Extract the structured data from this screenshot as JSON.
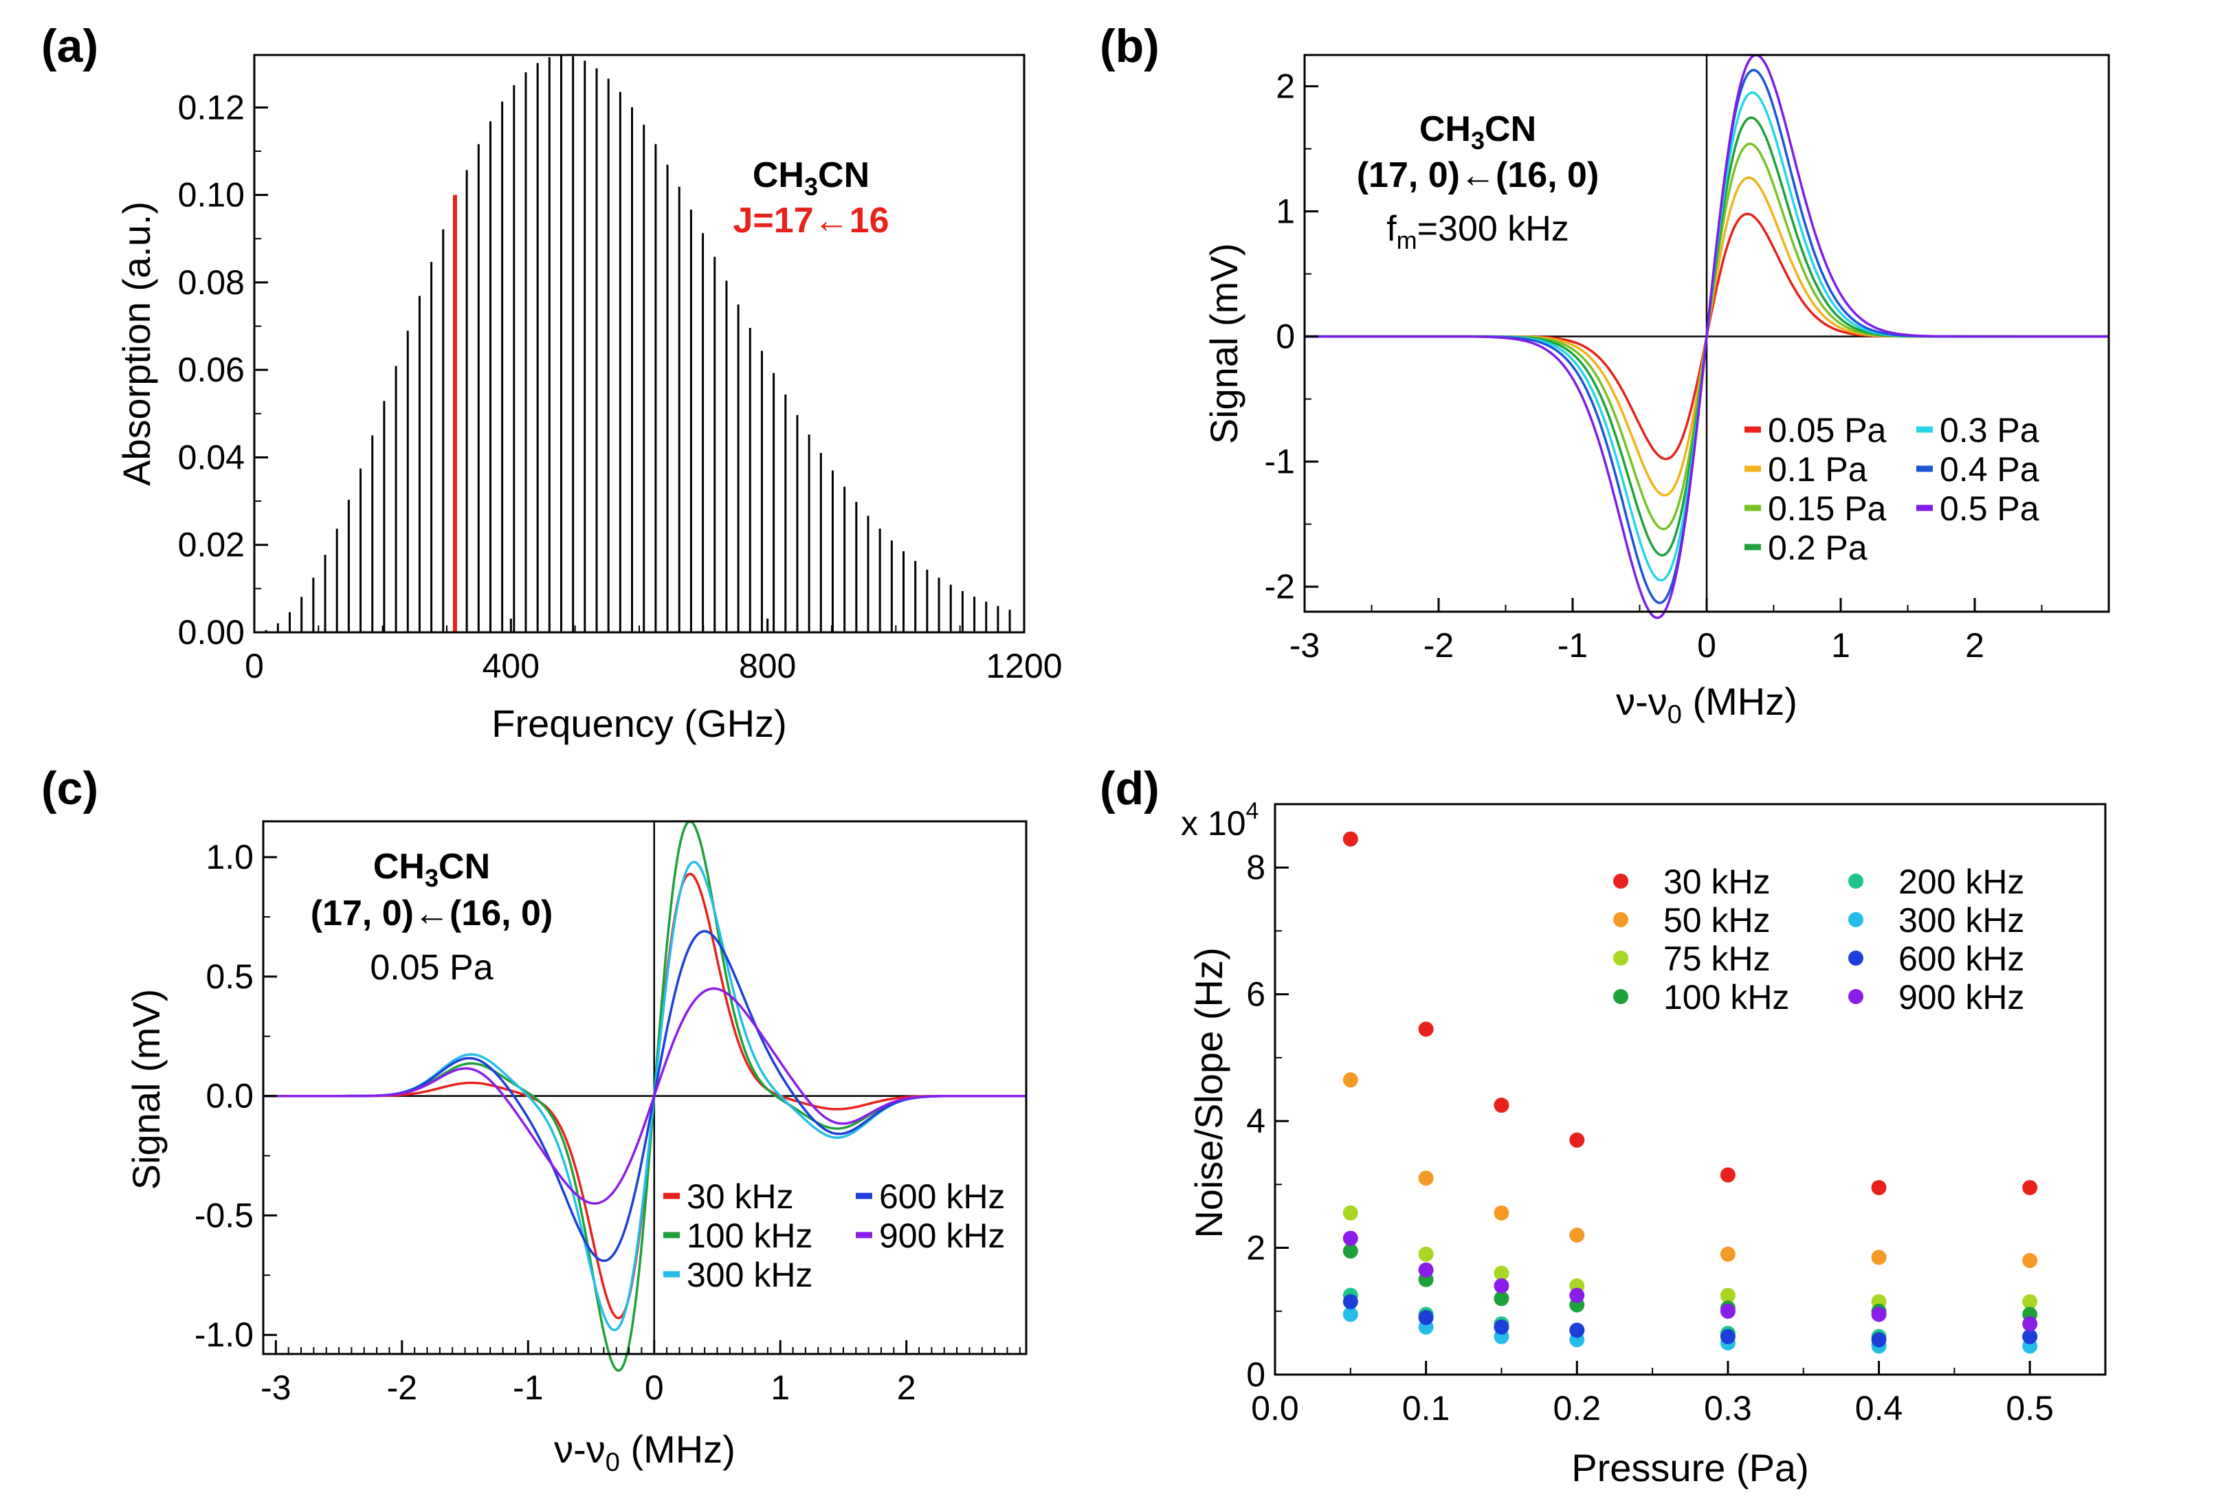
{
  "figure": {
    "panels": [
      {
        "label": "(a)",
        "xlabel": "Frequency (GHz)",
        "ylabel": "Absorption (a.u.)",
        "xticks": [
          "0",
          "400",
          "800",
          "1200"
        ],
        "yticks": [
          "0.00",
          "0.02",
          "0.04",
          "0.06",
          "0.08",
          "0.10",
          "0.12"
        ],
        "annotation": {
          "molecule": "CH",
          "sub": "3",
          "molecule_tail": "CN",
          "transition": "J=17←16"
        }
      },
      {
        "label": "(b)",
        "xlabel_main": "ν-ν",
        "xlabel_sub": "0",
        "xlabel_tail": " (MHz)",
        "ylabel": "Signal (mV)",
        "xticks": [
          "-3",
          "-2",
          "-1",
          "0",
          "1",
          "2"
        ],
        "yticks": [
          "-2",
          "-1",
          "0",
          "1",
          "2"
        ],
        "annotation": {
          "molecule": "CH",
          "sub": "3",
          "molecule_tail": "CN",
          "transition": "(17, 0)←(16, 0)",
          "param_main": "f",
          "param_sub": "m",
          "param_tail": "=300 kHz"
        }
      },
      {
        "label": "(c)",
        "xlabel_main": "ν-ν",
        "xlabel_sub": "0",
        "xlabel_tail": " (MHz)",
        "ylabel": "Signal (mV)",
        "xticks": [
          "-3",
          "-2",
          "-1",
          "0",
          "1",
          "2"
        ],
        "yticks": [
          "-1.0",
          "-0.5",
          "0.0",
          "0.5",
          "1.0"
        ],
        "annotation": {
          "molecule": "CH",
          "sub": "3",
          "molecule_tail": "CN",
          "transition": "(17, 0)←(16, 0)",
          "param": "0.05 Pa"
        }
      },
      {
        "label": "(d)",
        "xlabel": "Pressure (Pa)",
        "ylabel": "Noise/Slope (Hz)",
        "xticks": [
          "0.0",
          "0.1",
          "0.2",
          "0.3",
          "0.4",
          "0.5"
        ],
        "yticks": [
          "0",
          "2",
          "4",
          "6",
          "8"
        ],
        "multiplier_main": "x 10",
        "multiplier_exp": "4"
      }
    ]
  },
  "chart_data": [
    {
      "panel": "a",
      "type": "bar",
      "title": "",
      "xlabel": "Frequency (GHz)",
      "ylabel": "Absorption (a.u.)",
      "xlim": [
        0,
        1200
      ],
      "ylim": [
        0,
        0.132
      ],
      "line_spacing_GHz": 18.4,
      "envelope": {
        "peak_frequency_GHz": 460,
        "peak_value": 0.132,
        "spectral_range_GHz": [
          18,
          1200
        ]
      },
      "highlighted_line": {
        "label": "J=17←16",
        "frequency_GHz": 313,
        "value": 0.1,
        "color": "#e8211b"
      },
      "annotation": "CH3CN",
      "colors": {
        "lines": "#000000",
        "highlight": "#e8211b"
      }
    },
    {
      "panel": "b",
      "type": "line",
      "xlabel": "ν-ν0 (MHz)",
      "ylabel": "Signal (mV)",
      "xlim": [
        -3,
        3
      ],
      "ylim": [
        -2.2,
        2.25
      ],
      "model": "dispersive derivative profile",
      "series": [
        {
          "name": "0.05 Pa",
          "color": "#e8211b",
          "peak_mV": 0.98,
          "peak_position_MHz": 0.33
        },
        {
          "name": "0.1 Pa",
          "color": "#f2b21c",
          "peak_mV": 1.27,
          "peak_position_MHz": 0.34
        },
        {
          "name": "0.15 Pa",
          "color": "#78c227",
          "peak_mV": 1.54,
          "peak_position_MHz": 0.35
        },
        {
          "name": "0.2 Pa",
          "color": "#1ea13b",
          "peak_mV": 1.75,
          "peak_position_MHz": 0.36
        },
        {
          "name": "0.3 Pa",
          "color": "#25d6e8",
          "peak_mV": 1.95,
          "peak_position_MHz": 0.37
        },
        {
          "name": "0.4 Pa",
          "color": "#1c55d8",
          "peak_mV": 2.13,
          "peak_position_MHz": 0.38
        },
        {
          "name": "0.5 Pa",
          "color": "#7d1ee8",
          "peak_mV": 2.25,
          "peak_position_MHz": 0.4
        }
      ]
    },
    {
      "panel": "c",
      "type": "line",
      "xlabel": "ν-ν0 (MHz)",
      "ylabel": "Signal (mV)",
      "xlim": [
        -3.1,
        2.95
      ],
      "ylim": [
        -1.08,
        1.15
      ],
      "series": [
        {
          "name": "30 kHz",
          "color": "#e8211b",
          "peak_mV": 0.93,
          "peak_position_MHz": 0.27
        },
        {
          "name": "100 kHz",
          "color": "#1ea13b",
          "peak_mV": 1.15,
          "peak_position_MHz": 0.27
        },
        {
          "name": "300 kHz",
          "color": "#25bde8",
          "peak_mV": 0.98,
          "peak_position_MHz": 0.3
        },
        {
          "name": "600 kHz",
          "color": "#1c3fd8",
          "peak_mV": 0.69,
          "peak_position_MHz": 0.38
        },
        {
          "name": "900 kHz",
          "color": "#8a1ee8",
          "peak_mV": 0.45,
          "peak_position_MHz": 0.45
        }
      ]
    },
    {
      "panel": "d",
      "type": "scatter",
      "xlabel": "Pressure (Pa)",
      "ylabel": "Noise/Slope (Hz)",
      "y_multiplier": 10000,
      "xlim": [
        0,
        0.55
      ],
      "ylim": [
        0,
        9
      ],
      "x": [
        0.05,
        0.1,
        0.15,
        0.2,
        0.3,
        0.4,
        0.5
      ],
      "series": [
        {
          "name": "30 kHz",
          "color": "#e8211b",
          "values": [
            8.45,
            5.45,
            4.25,
            3.7,
            3.15,
            2.95,
            2.95
          ]
        },
        {
          "name": "50 kHz",
          "color": "#f59a27",
          "values": [
            4.65,
            3.1,
            2.55,
            2.2,
            1.9,
            1.85,
            1.8
          ]
        },
        {
          "name": "75 kHz",
          "color": "#a8d622",
          "values": [
            2.55,
            1.9,
            1.6,
            1.4,
            1.25,
            1.15,
            1.15
          ]
        },
        {
          "name": "100 kHz",
          "color": "#1ea13b",
          "values": [
            1.95,
            1.5,
            1.2,
            1.1,
            1.05,
            1.0,
            0.95
          ]
        },
        {
          "name": "200 kHz",
          "color": "#1fc48a",
          "values": [
            1.25,
            0.95,
            0.8,
            0.7,
            0.65,
            0.6,
            0.6
          ]
        },
        {
          "name": "300 kHz",
          "color": "#25bde8",
          "values": [
            0.95,
            0.75,
            0.6,
            0.55,
            0.5,
            0.45,
            0.45
          ]
        },
        {
          "name": "600 kHz",
          "color": "#1c3fd8",
          "values": [
            1.15,
            0.9,
            0.75,
            0.7,
            0.6,
            0.55,
            0.6
          ]
        },
        {
          "name": "900 kHz",
          "color": "#8a1ee8",
          "values": [
            2.15,
            1.65,
            1.4,
            1.25,
            1.0,
            0.95,
            0.8
          ]
        }
      ]
    }
  ]
}
